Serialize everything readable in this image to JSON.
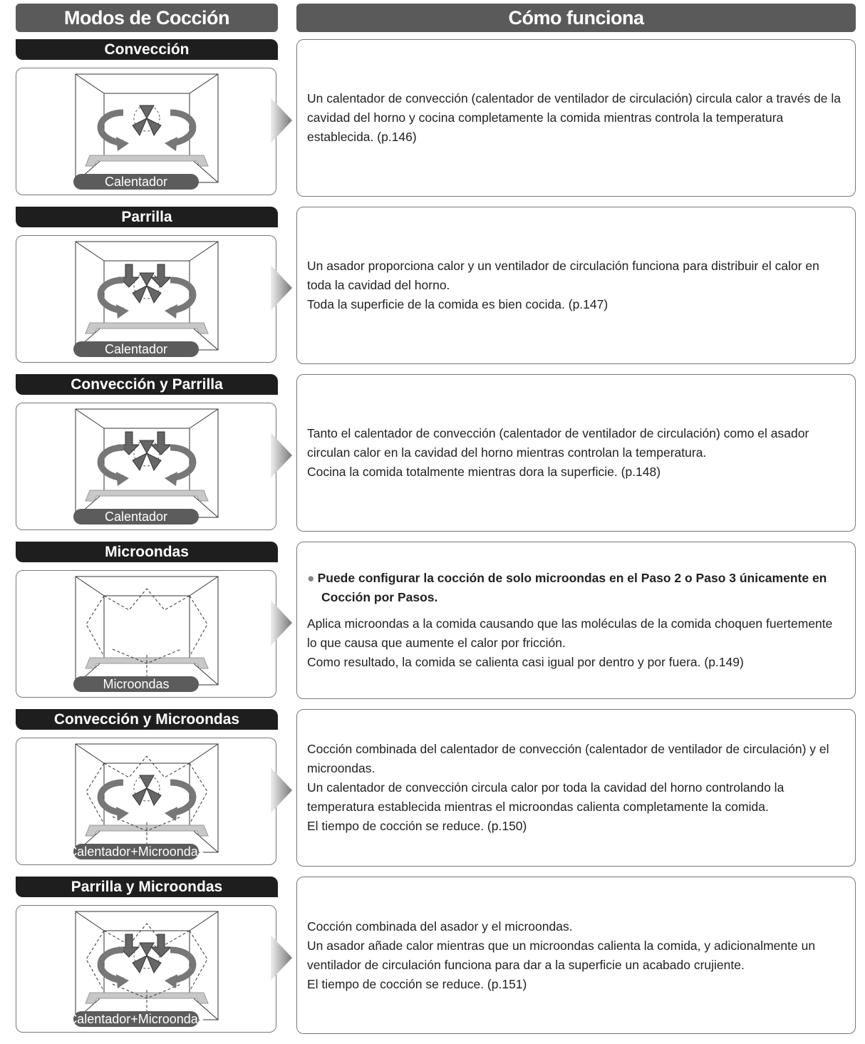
{
  "header": {
    "left": "Modos de Cocción",
    "right": "Cómo funciona"
  },
  "rows": [
    {
      "title": "Convección",
      "label": "Calentador",
      "paragraphs": [
        "Un calentador de convección (calentador de ventilador de circulación) circula calor a través de la cavidad del horno y cocina completamente la comida mientras controla la temperatura establecida. (p.146)"
      ]
    },
    {
      "title": "Parrilla",
      "label": "Calentador",
      "paragraphs": [
        "Un asador proporciona calor y un ventilador de circulación funciona para distribuir el calor en toda la cavidad del horno.",
        "Toda la superficie de la comida es bien cocida. (p.147)"
      ]
    },
    {
      "title": "Convección y Parrilla",
      "label": "Calentador",
      "paragraphs": [
        "Tanto el calentador de convección (calentador de ventilador de circulación) como el asador circulan calor en la cavidad del horno mientras controlan la temperatura.",
        "Cocina la comida totalmente mientras dora la superficie. (p.148)"
      ]
    },
    {
      "title": "Microondas",
      "label": "Microondas",
      "note": "Puede configurar la cocción de solo microondas en el Paso 2 o Paso 3 únicamente en Cocción por Pasos.",
      "paragraphs": [
        "Aplica microondas a la comida causando que las moléculas de la comida choquen fuertemente lo que causa que aumente el calor por fricción.",
        "Como resultado, la comida se calienta casi igual por dentro y por fuera. (p.149)"
      ]
    },
    {
      "title": "Convección y Microondas",
      "label": "Calentador+Microondas",
      "paragraphs": [
        "Cocción combinada del calentador de convección (calentador de ventilador de circulación) y el microondas.",
        "Un calentador de convección circula calor por toda la cavidad del horno controlando la temperatura establecida mientras el microondas calienta completamente la comida.",
        "El tiempo de cocción se reduce. (p.150)"
      ]
    },
    {
      "title": "Parrilla y Microondas",
      "label": "Calentador+Microondas",
      "paragraphs": [
        "Cocción combinada del asador y el microondas.",
        "Un asador añade calor mientras que un microondas calienta la comida, y adicionalmente un ventilador de circulación funciona para dar a la superficie un acabado crujiente.",
        "El tiempo de cocción se reduce. (p.151)"
      ]
    }
  ]
}
